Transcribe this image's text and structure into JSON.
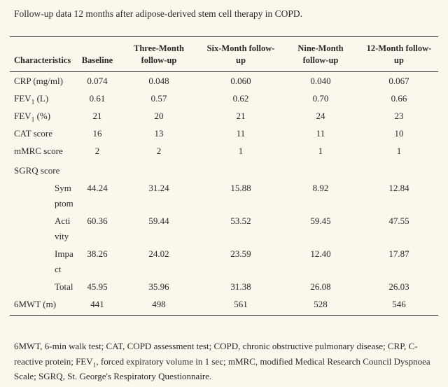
{
  "title": "Follow-up data 12 months after adipose-derived stem cell therapy in COPD.",
  "colors": {
    "background": "#fcf7ed",
    "text": "#2b2a26",
    "rule": "#3e3d37"
  },
  "table": {
    "header": {
      "col1": "Characteristics",
      "col2": "Baseline",
      "col3": [
        "Three-Month",
        "follow-up"
      ],
      "col4": [
        "Six-Month follow-",
        "up"
      ],
      "col5": [
        "Nine-Month",
        "follow-up"
      ],
      "col6": [
        "12-Month follow-",
        "up"
      ]
    },
    "rows": [
      {
        "label": "CRP (mg/ml)",
        "values": [
          "0.074",
          "0.048",
          "0.060",
          "0.040",
          "0.067"
        ]
      },
      {
        "label_pre": "FEV",
        "label_sub": "1",
        "label_post": " (L)",
        "values": [
          "0.61",
          "0.57",
          "0.62",
          "0.70",
          "0.66"
        ]
      },
      {
        "label_pre": "FEV",
        "label_sub": "1",
        "label_post": " (%)",
        "values": [
          "21",
          "20",
          "21",
          "24",
          "23"
        ]
      },
      {
        "label": "CAT score",
        "values": [
          "16",
          "13",
          "11",
          "11",
          "10"
        ]
      },
      {
        "label": "mMRC score",
        "values": [
          "2",
          "2",
          "1",
          "1",
          "1"
        ]
      },
      {
        "label": "SGRQ score",
        "values": [
          "",
          "",
          "",
          "",
          ""
        ]
      },
      {
        "label_lines": [
          "Sym",
          "ptom"
        ],
        "values": [
          "44.24",
          "31.24",
          "15.88",
          "8.92",
          "12.84"
        ]
      },
      {
        "label_lines": [
          "Acti",
          "vity"
        ],
        "values": [
          "60.36",
          "59.44",
          "53.52",
          "59.45",
          "47.55"
        ]
      },
      {
        "label_lines": [
          "Impa",
          "ct"
        ],
        "values": [
          "38.26",
          "24.02",
          "23.59",
          "12.40",
          "17.87"
        ]
      },
      {
        "label": "Total",
        "values": [
          "45.95",
          "35.96",
          "31.38",
          "26.08",
          "26.03"
        ]
      },
      {
        "label": "6MWT (m)",
        "values": [
          "441",
          "498",
          "561",
          "528",
          "546"
        ]
      }
    ]
  },
  "footnote": {
    "part1": "6MWT, 6-min walk test; CAT, COPD assessment test; COPD, chronic obstructive pulmonary disease; CRP, C-reactive protein; FEV",
    "sub": "1",
    "part2": ", forced expiratory volume in 1 sec; mMRC, modified Medical Research Council Dyspnoea Scale; SGRQ, St. George's Respiratory Questionnaire."
  }
}
